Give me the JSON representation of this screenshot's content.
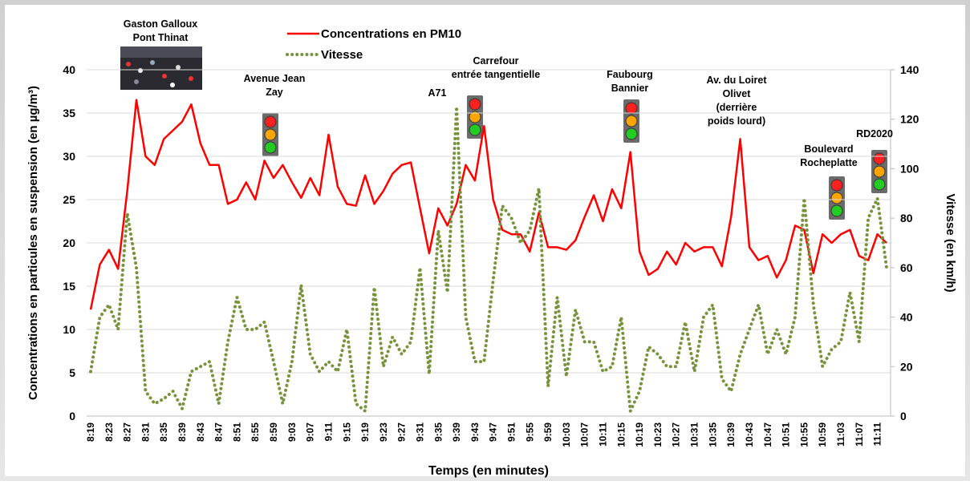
{
  "chart_data": {
    "type": "line",
    "x_label": "Temps (en minutes)",
    "y_label": "Concentrations en particules en suspension (en µg/m³)",
    "y2_label": "Vitesse (en km/h)",
    "categories": [
      "8:19",
      null,
      "8:23",
      null,
      "8:27",
      null,
      "8:31",
      null,
      "8:35",
      null,
      "8:39",
      null,
      "8:43",
      null,
      "8:47",
      null,
      "8:51",
      null,
      "8:55",
      null,
      "8:59",
      null,
      "9:03",
      null,
      "9:07",
      null,
      "9:11",
      null,
      "9:15",
      null,
      "9:19",
      null,
      "9:23",
      null,
      "9:27",
      null,
      "9:31",
      null,
      "9:35",
      null,
      "9:39",
      null,
      "9:43",
      null,
      "9:47",
      null,
      "9:51",
      null,
      "9:55",
      null,
      "9:59",
      null,
      "10:03",
      null,
      "10:07",
      null,
      "10:11",
      null,
      "10:15",
      null,
      "10:19",
      null,
      "10:23",
      null,
      "10:27",
      null,
      "10:31",
      null,
      "10:35",
      null,
      "10:39",
      null,
      "10:43",
      null,
      "10:47",
      null,
      "10:51",
      null,
      "10:55",
      null,
      "10:59",
      null,
      "11:03",
      null,
      "11:07",
      null,
      "11:11",
      null
    ],
    "series": [
      {
        "name": "Concentrations en PM10",
        "color": "#ff0000",
        "style": "solid",
        "values": [
          12.3,
          17.5,
          19.2,
          17,
          26,
          36.5,
          30,
          29,
          32,
          33,
          34,
          36,
          31.5,
          29,
          29,
          24.5,
          25,
          27,
          25,
          29.5,
          27.5,
          29,
          27,
          25.2,
          27.5,
          25.5,
          32.5,
          26.5,
          24.5,
          24.3,
          27.8,
          24.5,
          26,
          28,
          29,
          29.3,
          24,
          18.8,
          24,
          22,
          24.5,
          29,
          27.2,
          33.5,
          25,
          21.5,
          21,
          21,
          19,
          23.5,
          19.5,
          19.5,
          19.2,
          20.3,
          23,
          25.5,
          22.5,
          26.2,
          24,
          30.5,
          19,
          16.3,
          17,
          19,
          17.5,
          20,
          19,
          19.5,
          19.5,
          17.3,
          23,
          32,
          19.5,
          18,
          18.5,
          16,
          18,
          22,
          21.5,
          16.5,
          21,
          20,
          21,
          21.5,
          18.5,
          18,
          21,
          20
        ]
      },
      {
        "name": "Vitesse",
        "color": "#77933c",
        "style": "dotted",
        "axis": "y2",
        "values": [
          18,
          40,
          45,
          35,
          82,
          60,
          10,
          5,
          7,
          10,
          3,
          18,
          20,
          22,
          5,
          30,
          48,
          35,
          35,
          38,
          22,
          5,
          22,
          53,
          25,
          18,
          22,
          18,
          35,
          5,
          2,
          52,
          20,
          32,
          25,
          30,
          60,
          17,
          75,
          50,
          125,
          40,
          22,
          22,
          55,
          85,
          80,
          70,
          75,
          92,
          12,
          48,
          16,
          43,
          30,
          30,
          18,
          20,
          40,
          2,
          10,
          28,
          25,
          20,
          20,
          38,
          18,
          40,
          45,
          15,
          10,
          25,
          35,
          45,
          25,
          35,
          25,
          40,
          88,
          45,
          20,
          27,
          30,
          50,
          30,
          80,
          88,
          60
        ]
      }
    ],
    "ylim": [
      0,
      40
    ],
    "yticks": [
      0,
      5,
      10,
      15,
      20,
      25,
      30,
      35,
      40
    ],
    "y2lim": [
      0,
      140
    ],
    "y2ticks": [
      0,
      20,
      40,
      60,
      80,
      100,
      120,
      140
    ],
    "grid": true,
    "annotations": [
      {
        "lines": [
          "Gaston Galloux",
          "Pont Thinat"
        ]
      },
      {
        "lines": [
          "Avenue Jean",
          "Zay"
        ]
      },
      {
        "lines": [
          "A71"
        ]
      },
      {
        "lines": [
          "Carrefour",
          "entrée tangentielle"
        ]
      },
      {
        "lines": [
          "Faubourg",
          "Bannier"
        ]
      },
      {
        "lines": [
          "Av. du Loiret",
          "Olivet",
          "(derrière",
          "poids lourd)"
        ]
      },
      {
        "lines": [
          "Boulevard",
          "Rocheplatte"
        ]
      },
      {
        "lines": [
          "RD2020"
        ]
      }
    ]
  }
}
